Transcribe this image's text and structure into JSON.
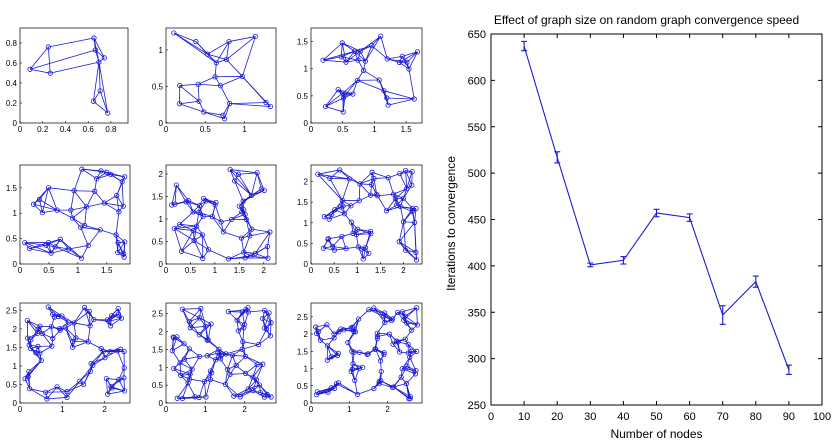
{
  "chart_data": [
    {
      "type": "scatter",
      "subtype": "random-graph-grid",
      "rows": 3,
      "cols": 3,
      "color": "#1a1ad6",
      "panels": [
        {
          "xticks": [
            "0",
            "0.2",
            "0.4",
            "0.6",
            "0.8"
          ],
          "yticks": [
            "0",
            "0.2",
            "0.4",
            "0.6",
            "0.8"
          ],
          "xlim": [
            0,
            0.95
          ],
          "ylim": [
            0,
            0.95
          ],
          "nodes": 10
        },
        {
          "xticks": [
            "0",
            "0.5",
            "1"
          ],
          "yticks": [
            "0",
            "0.5",
            "1"
          ],
          "xlim": [
            0,
            1.4
          ],
          "ylim": [
            0,
            1.3
          ],
          "nodes": 20
        },
        {
          "xticks": [
            "0",
            "0.5",
            "1",
            "1.5"
          ],
          "yticks": [
            "0",
            "0.5",
            "1",
            "1.5"
          ],
          "xlim": [
            0,
            1.75
          ],
          "ylim": [
            0,
            1.75
          ],
          "nodes": 30
        },
        {
          "xticks": [
            "0",
            "0.5",
            "1",
            "1.5"
          ],
          "yticks": [
            "0",
            "0.5",
            "1",
            "1.5"
          ],
          "xlim": [
            0,
            1.9
          ],
          "ylim": [
            0,
            1.95
          ],
          "nodes": 40
        },
        {
          "xticks": [
            "0",
            "0.5",
            "1",
            "1.5",
            "2"
          ],
          "yticks": [
            "0",
            "0.5",
            "1",
            "1.5",
            "2"
          ],
          "xlim": [
            0,
            2.25
          ],
          "ylim": [
            0,
            2.2
          ],
          "nodes": 50
        },
        {
          "xticks": [
            "0",
            "0.5",
            "1",
            "1.5",
            "2"
          ],
          "yticks": [
            "0",
            "0.5",
            "1",
            "1.5",
            "2"
          ],
          "xlim": [
            0,
            2.4
          ],
          "ylim": [
            0,
            2.4
          ],
          "nodes": 60
        },
        {
          "xticks": [
            "0",
            "1",
            "2"
          ],
          "yticks": [
            "0",
            "0.5",
            "1",
            "1.5",
            "2",
            "2.5"
          ],
          "xlim": [
            0,
            2.6
          ],
          "ylim": [
            0,
            2.7
          ],
          "nodes": 70
        },
        {
          "xticks": [
            "0",
            "1",
            "2"
          ],
          "yticks": [
            "0",
            "0.5",
            "1",
            "1.5",
            "2",
            "2.5"
          ],
          "xlim": [
            0,
            2.8
          ],
          "ylim": [
            0,
            2.8
          ],
          "nodes": 80
        },
        {
          "xticks": [
            "0",
            "1",
            "2"
          ],
          "yticks": [
            "0",
            "0.5",
            "1",
            "1.5",
            "2",
            "2.5"
          ],
          "xlim": [
            0,
            2.9
          ],
          "ylim": [
            0,
            2.9
          ],
          "nodes": 90
        }
      ]
    },
    {
      "type": "line",
      "title": "Effect of graph size on random graph convergence speed",
      "xlabel": "Number of nodes",
      "ylabel": "Iterations to convergence",
      "xlim": [
        0,
        100
      ],
      "ylim": [
        250,
        650
      ],
      "xticks": [
        0,
        10,
        20,
        30,
        40,
        50,
        60,
        70,
        80,
        90,
        100
      ],
      "yticks": [
        250,
        300,
        350,
        400,
        450,
        500,
        550,
        600,
        650
      ],
      "color": "#1a1ad6",
      "series": [
        {
          "x": [
            10,
            20,
            30,
            40,
            50,
            60,
            70,
            80,
            90
          ],
          "y": [
            637,
            517,
            401,
            406,
            457,
            452,
            347,
            383,
            288
          ],
          "err": [
            5,
            6,
            2,
            4,
            4,
            4,
            10,
            6,
            5
          ]
        }
      ]
    }
  ]
}
